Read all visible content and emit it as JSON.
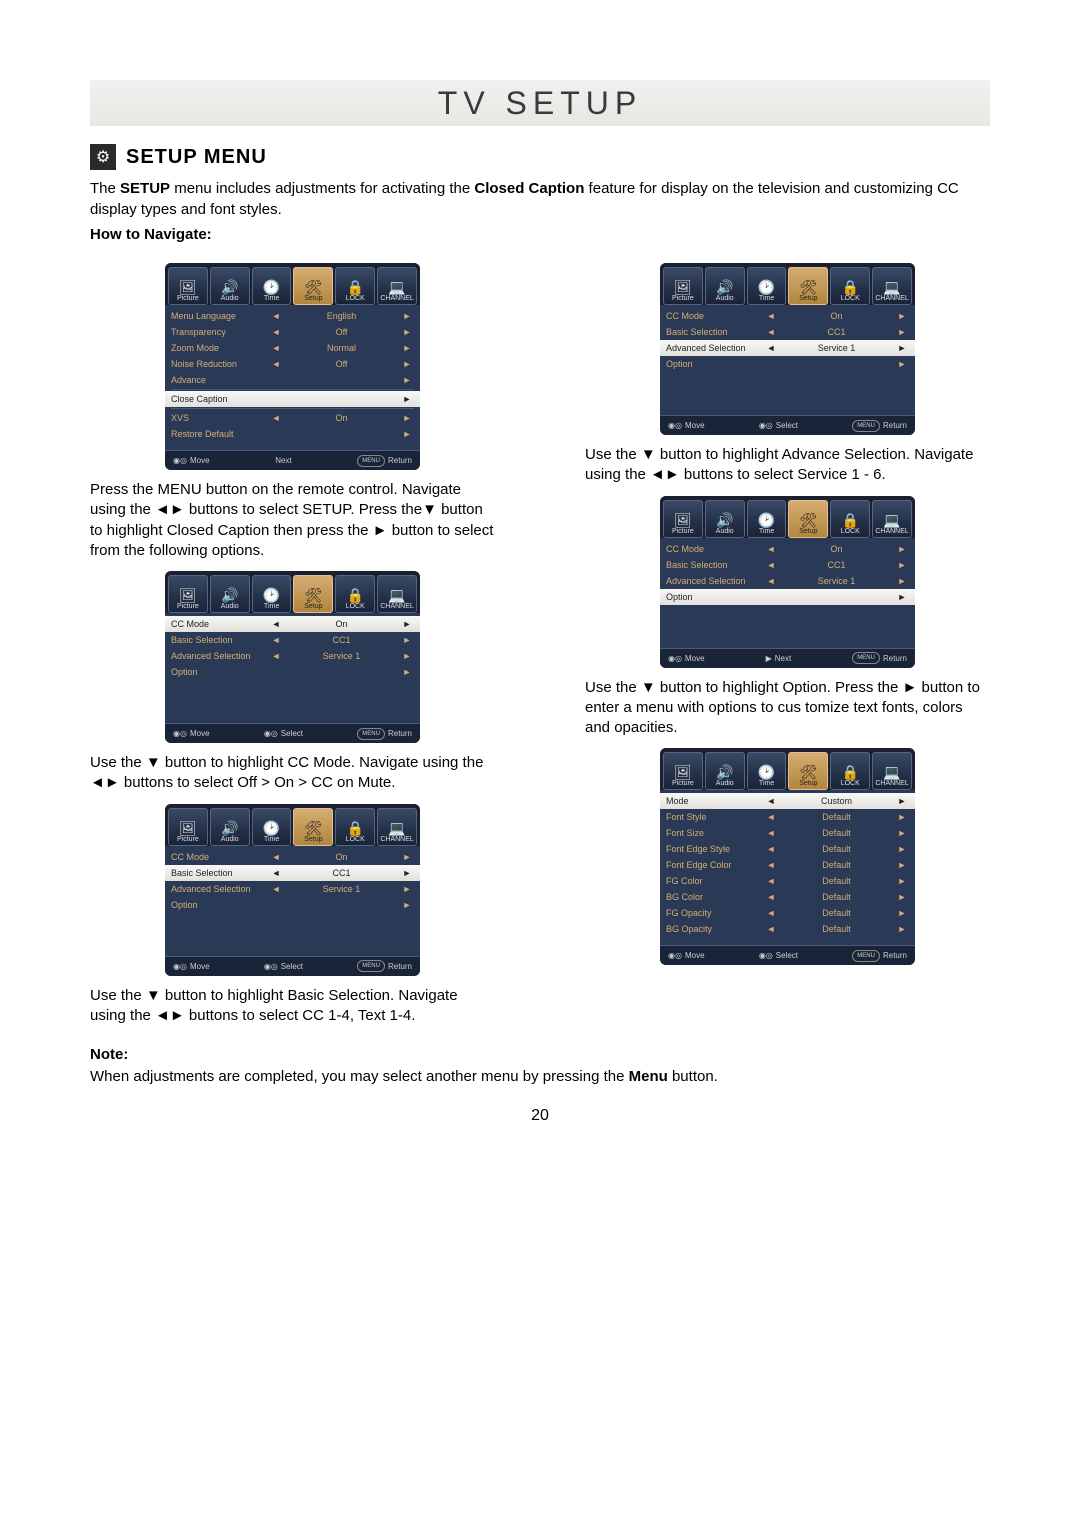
{
  "header": {
    "title": "TV SETUP"
  },
  "section": {
    "icon": "⚙",
    "title": "SETUP MENU",
    "intro": "The <b>SETUP</b> menu includes adjustments for activating the <b>Closed Caption</b> feature for display on the television and customizing CC display types and font styles.",
    "howto": "How to Navigate:"
  },
  "tabs": {
    "labels": [
      "Picture",
      "Audio",
      "Time",
      "Setup",
      "LOCK",
      "CHANNEL"
    ],
    "icons": [
      "🖼",
      "🔊",
      "🕑",
      "🛠",
      "🔒",
      "💻"
    ],
    "highlight_index": 3
  },
  "menu1": {
    "rows": [
      {
        "label": "Menu Language",
        "val": "English",
        "sel": false,
        "arrows": true
      },
      {
        "label": "Transparency",
        "val": "Off",
        "sel": false,
        "arrows": true
      },
      {
        "label": "Zoom Mode",
        "val": "Normal",
        "sel": false,
        "arrows": true
      },
      {
        "label": "Noise Reduction",
        "val": "Off",
        "sel": false,
        "arrows": true
      },
      {
        "label": "Advance",
        "val": "",
        "sel": false,
        "arrows": false,
        "right": true
      },
      {
        "label": "Close Caption",
        "val": "",
        "sel": true,
        "arrows": false,
        "right": true,
        "divider_before": true
      },
      {
        "label": "XVS",
        "val": "On",
        "sel": false,
        "arrows": true,
        "divider_before": true
      },
      {
        "label": "Restore Default",
        "val": "",
        "sel": false,
        "arrows": false,
        "right": true
      }
    ],
    "footer": [
      {
        "icon": "◉◎",
        "t": "Move"
      },
      {
        "t": "Next",
        "center": true
      },
      {
        "chip": "MENU",
        "t": "Return"
      }
    ]
  },
  "cap1": "Press the MENU button on the remote control. Navigate using the ◄► buttons to select SETUP. Press the▼ button to highlight Closed Caption then press the ► button to select from the following options.",
  "menu2": {
    "rows": [
      {
        "label": "CC Mode",
        "val": "On",
        "sel": false,
        "arrows": true
      },
      {
        "label": "Basic Selection",
        "val": "CC1",
        "sel": false,
        "arrows": true
      },
      {
        "label": "Advanced Selection",
        "val": "Service 1",
        "sel": true,
        "arrows": true
      },
      {
        "label": "Option",
        "val": "",
        "sel": false,
        "arrows": false,
        "right": true
      }
    ],
    "footer": [
      {
        "icon": "◉◎",
        "t": "Move"
      },
      {
        "icon": "◉◎",
        "t": "Select",
        "center": true
      },
      {
        "chip": "MENU",
        "t": "Return"
      }
    ]
  },
  "cap2": "Use the ▼ button to highlight Advance Selection. Navigate using the ◄► buttons to select Service 1 - 6.",
  "menu3": {
    "rows": [
      {
        "label": "CC Mode",
        "val": "On",
        "sel": true,
        "arrows": true
      },
      {
        "label": "Basic Selection",
        "val": "CC1",
        "sel": false,
        "arrows": true
      },
      {
        "label": "Advanced Selection",
        "val": "Service 1",
        "sel": false,
        "arrows": true
      },
      {
        "label": "Option",
        "val": "",
        "sel": false,
        "arrows": false,
        "right": true
      }
    ],
    "footer": [
      {
        "icon": "◉◎",
        "t": "Move"
      },
      {
        "icon": "◉◎",
        "t": "Select",
        "center": true
      },
      {
        "chip": "MENU",
        "t": "Return"
      }
    ]
  },
  "cap3": "Use the ▼ button to highlight CC Mode. Navigate using the ◄► buttons to select Off > On > CC on Mute.",
  "menu4": {
    "rows": [
      {
        "label": "CC Mode",
        "val": "On",
        "sel": false,
        "arrows": true
      },
      {
        "label": "Basic Selection",
        "val": "CC1",
        "sel": false,
        "arrows": true
      },
      {
        "label": "Advanced Selection",
        "val": "Service 1",
        "sel": false,
        "arrows": true
      },
      {
        "label": "Option",
        "val": "",
        "sel": true,
        "arrows": false,
        "right": true
      }
    ],
    "footer": [
      {
        "icon": "◉◎",
        "t": "Move"
      },
      {
        "icon": "▶",
        "t": "Next",
        "center": true
      },
      {
        "chip": "MENU",
        "t": "Return"
      }
    ]
  },
  "cap4": "Use the ▼ button to highlight Option. Press the ► button to enter a menu with options to cus tomize text fonts, colors and opacities.",
  "menu5": {
    "rows": [
      {
        "label": "CC Mode",
        "val": "On",
        "sel": false,
        "arrows": true
      },
      {
        "label": "Basic Selection",
        "val": "CC1",
        "sel": true,
        "arrows": true
      },
      {
        "label": "Advanced Selection",
        "val": "Service 1",
        "sel": false,
        "arrows": true
      },
      {
        "label": "Option",
        "val": "",
        "sel": false,
        "arrows": false,
        "right": true
      }
    ],
    "footer": [
      {
        "icon": "◉◎",
        "t": "Move"
      },
      {
        "icon": "◉◎",
        "t": "Select",
        "center": true
      },
      {
        "chip": "MENU",
        "t": "Return"
      }
    ]
  },
  "cap5": "Use the ▼ button to highlight Basic Selection. Navigate using the ◄► buttons to select CC 1-4, Text 1-4.",
  "menu6": {
    "rows": [
      {
        "label": "Mode",
        "val": "Custom",
        "sel": true,
        "arrows": true
      },
      {
        "label": "Font Style",
        "val": "Default",
        "sel": false,
        "arrows": true
      },
      {
        "label": "Font Size",
        "val": "Default",
        "sel": false,
        "arrows": true
      },
      {
        "label": "Font Edge Style",
        "val": "Default",
        "sel": false,
        "arrows": true
      },
      {
        "label": "Font Edge Color",
        "val": "Default",
        "sel": false,
        "arrows": true
      },
      {
        "label": "FG Color",
        "val": "Default",
        "sel": false,
        "arrows": true
      },
      {
        "label": "BG Color",
        "val": "Default",
        "sel": false,
        "arrows": true
      },
      {
        "label": "FG Opacity",
        "val": "Default",
        "sel": false,
        "arrows": true
      },
      {
        "label": "BG Opacity",
        "val": "Default",
        "sel": false,
        "arrows": true
      }
    ],
    "footer": [
      {
        "icon": "◉◎",
        "t": "Move"
      },
      {
        "icon": "◉◎",
        "t": "Select",
        "center": true
      },
      {
        "chip": "MENU",
        "t": "Return"
      }
    ]
  },
  "note": {
    "head": "Note:",
    "body": "When adjustments are completed, you may select another menu by pressing the <b>Menu</b> button."
  },
  "page_num": "20"
}
